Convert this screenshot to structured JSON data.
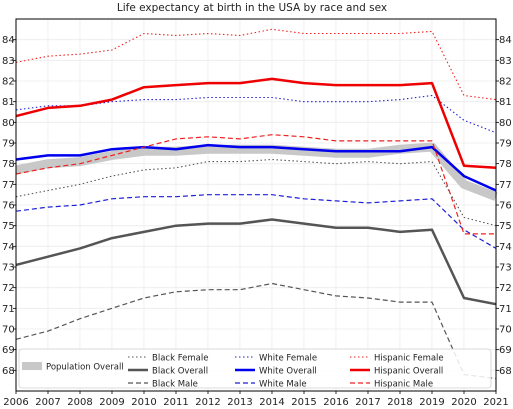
{
  "chart_data": {
    "type": "line",
    "title": "Life expectancy at birth in the USA by race and sex",
    "xlabel": "",
    "ylabel": "",
    "x": [
      2006,
      2007,
      2008,
      2009,
      2010,
      2011,
      2012,
      2013,
      2014,
      2015,
      2016,
      2017,
      2018,
      2019,
      2020,
      2021
    ],
    "xlim": [
      2006,
      2021
    ],
    "ylim": [
      67,
      85
    ],
    "yticks": [
      68,
      69,
      70,
      71,
      72,
      73,
      74,
      75,
      76,
      77,
      78,
      79,
      80,
      81,
      82,
      83,
      84
    ],
    "grid": true,
    "right_axis_labels": true,
    "legend_position": "bottom",
    "series": [
      {
        "name": "Population Overall",
        "color": "#c8c8c8",
        "style": "band",
        "values": [
          77.7,
          78.0,
          78.1,
          78.4,
          78.6,
          78.6,
          78.7,
          78.7,
          78.7,
          78.6,
          78.5,
          78.5,
          78.7,
          78.8,
          77.0,
          76.4
        ]
      },
      {
        "name": "Black Female",
        "color": "#555555",
        "style": "dotted",
        "values": [
          76.4,
          76.7,
          77.0,
          77.4,
          77.7,
          77.8,
          78.1,
          78.1,
          78.2,
          78.1,
          78.0,
          78.1,
          78.0,
          78.1,
          75.4,
          75.0
        ]
      },
      {
        "name": "Black Overall",
        "color": "#555555",
        "style": "solid",
        "values": [
          73.1,
          73.5,
          73.9,
          74.4,
          74.7,
          75.0,
          75.1,
          75.1,
          75.3,
          75.1,
          74.9,
          74.9,
          74.7,
          74.8,
          71.5,
          71.2
        ]
      },
      {
        "name": "Black Male",
        "color": "#555555",
        "style": "dashed",
        "values": [
          69.5,
          69.9,
          70.5,
          71.0,
          71.5,
          71.8,
          71.9,
          71.9,
          72.2,
          71.9,
          71.6,
          71.5,
          71.3,
          71.3,
          67.8,
          67.6
        ]
      },
      {
        "name": "White Female",
        "color": "#1f1fd8",
        "style": "dotted",
        "values": [
          80.6,
          80.8,
          80.8,
          81.0,
          81.1,
          81.1,
          81.2,
          81.2,
          81.2,
          81.0,
          81.0,
          81.0,
          81.1,
          81.3,
          80.1,
          79.5
        ]
      },
      {
        "name": "White Overall",
        "color": "#0000ee",
        "style": "solid",
        "values": [
          78.2,
          78.4,
          78.4,
          78.7,
          78.8,
          78.7,
          78.9,
          78.8,
          78.8,
          78.7,
          78.6,
          78.6,
          78.6,
          78.8,
          77.4,
          76.7
        ]
      },
      {
        "name": "White Male",
        "color": "#1f1fd8",
        "style": "dashed",
        "values": [
          75.7,
          75.9,
          76.0,
          76.3,
          76.4,
          76.4,
          76.5,
          76.5,
          76.5,
          76.3,
          76.2,
          76.1,
          76.2,
          76.3,
          74.8,
          73.9
        ]
      },
      {
        "name": "Hispanic Female",
        "color": "#ee2222",
        "style": "dotted",
        "values": [
          82.9,
          83.2,
          83.3,
          83.5,
          84.3,
          84.2,
          84.3,
          84.2,
          84.5,
          84.3,
          84.3,
          84.3,
          84.3,
          84.4,
          81.3,
          81.1
        ]
      },
      {
        "name": "Hispanic Overall",
        "color": "#ee0000",
        "style": "solid",
        "values": [
          80.3,
          80.7,
          80.8,
          81.1,
          81.7,
          81.8,
          81.9,
          81.9,
          82.1,
          81.9,
          81.8,
          81.8,
          81.8,
          81.9,
          77.9,
          77.8
        ]
      },
      {
        "name": "Hispanic Male",
        "color": "#ee2222",
        "style": "dashed",
        "values": [
          77.5,
          77.8,
          78.0,
          78.4,
          78.8,
          79.2,
          79.3,
          79.2,
          79.4,
          79.3,
          79.1,
          79.1,
          79.1,
          79.1,
          74.6,
          74.6
        ]
      }
    ]
  }
}
